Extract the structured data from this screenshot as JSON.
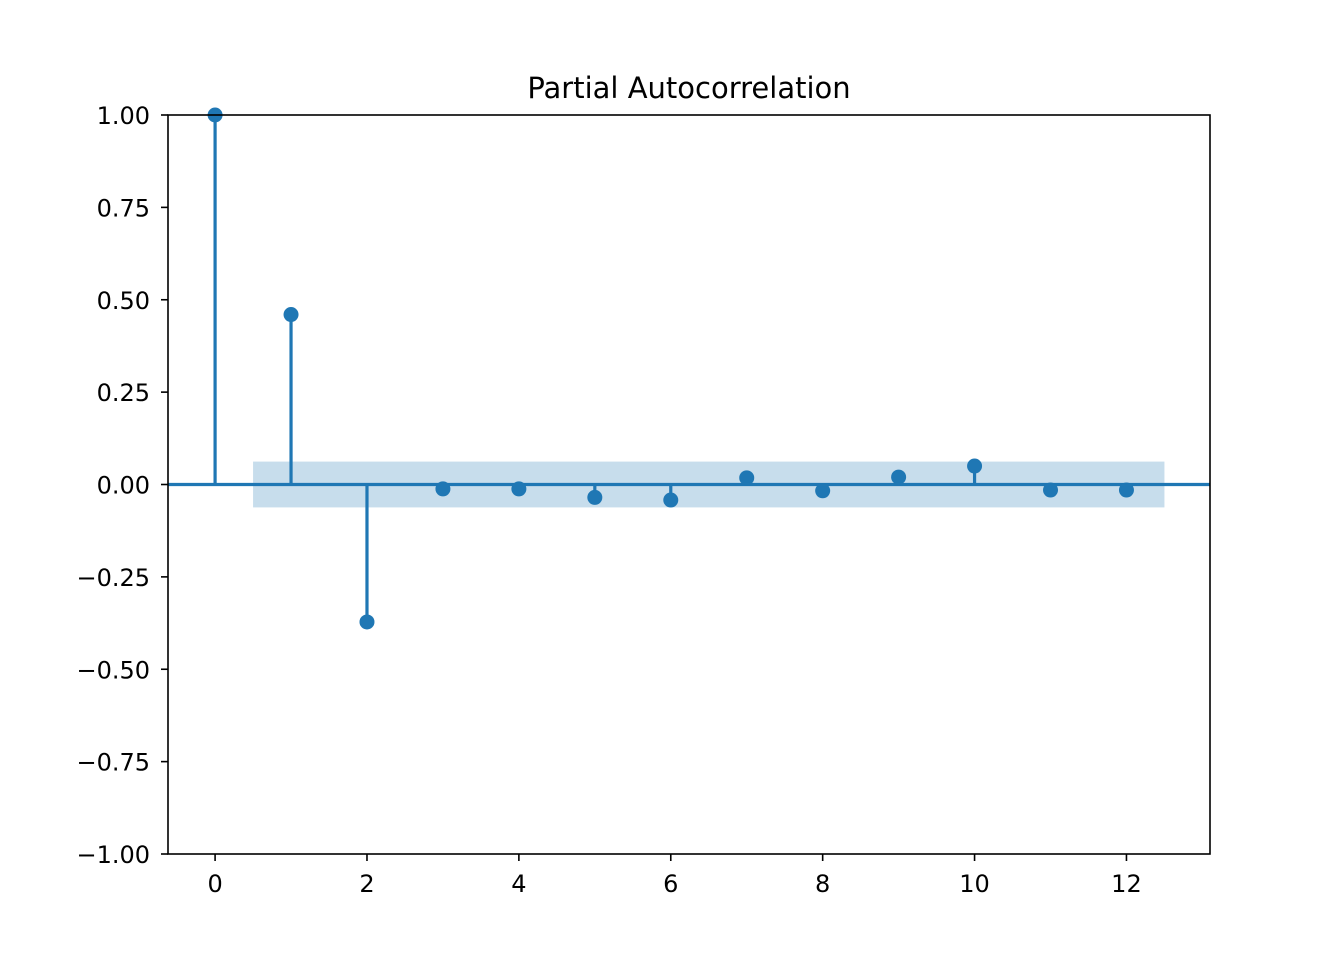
{
  "chart_data": {
    "type": "scatter",
    "subtype": "stem",
    "title": "Partial Autocorrelation",
    "xlabel": "",
    "ylabel": "",
    "xlim": [
      -0.62,
      13.1
    ],
    "ylim": [
      -1.0,
      1.0
    ],
    "xticks": [
      0,
      2,
      4,
      6,
      8,
      10,
      12
    ],
    "yticks": [
      1.0,
      0.75,
      0.5,
      0.25,
      0.0,
      -0.25,
      -0.5,
      -0.75,
      -1.0
    ],
    "ytick_labels": [
      "1.00",
      "0.75",
      "0.50",
      "0.25",
      "0.00",
      "−0.25",
      "−0.50",
      "−0.75",
      "−1.00"
    ],
    "xtick_labels": [
      "0",
      "2",
      "4",
      "6",
      "8",
      "10",
      "12"
    ],
    "lags": [
      0,
      1,
      2,
      3,
      4,
      5,
      6,
      7,
      8,
      9,
      10,
      11,
      12
    ],
    "values": [
      1.0,
      0.46,
      -0.372,
      -0.012,
      -0.012,
      -0.035,
      -0.042,
      0.018,
      -0.017,
      0.02,
      0.05,
      -0.015,
      -0.015
    ],
    "confidence_band": {
      "x_range": [
        0.5,
        12.5
      ],
      "y_range": [
        -0.062,
        0.062
      ]
    },
    "colors": {
      "stem": "#1f77b4",
      "band": "#1f77b4",
      "band_opacity": 0.25,
      "axis": "#000000"
    },
    "grid": false,
    "legend": "none"
  }
}
